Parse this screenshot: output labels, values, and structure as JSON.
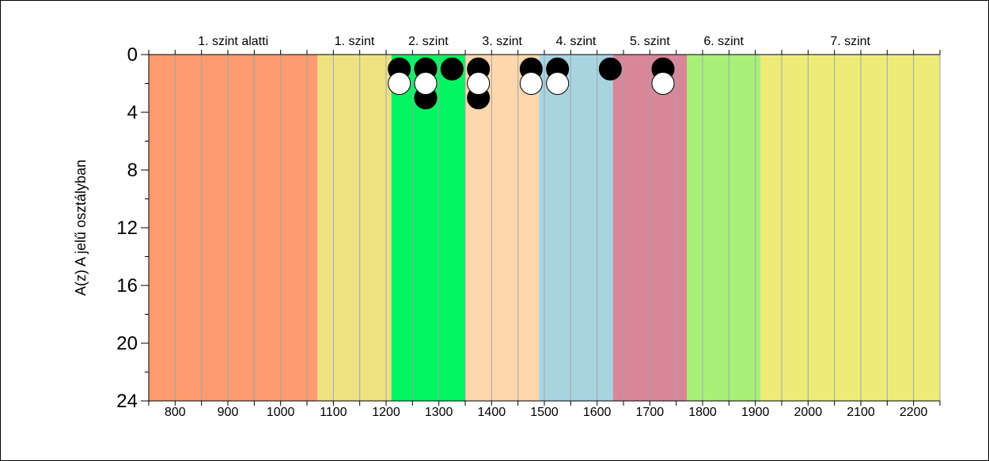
{
  "chart_data": {
    "type": "scatter",
    "title": "",
    "xlabel": "",
    "ylabel": "A(z) A jelű osztályban",
    "xlim": [
      750,
      2250
    ],
    "ylim": [
      0,
      24
    ],
    "y_inverted": true,
    "x_ticks": [
      800,
      900,
      1000,
      1100,
      1200,
      1300,
      1400,
      1500,
      1600,
      1700,
      1800,
      1900,
      2000,
      2100,
      2200
    ],
    "y_ticks": [
      0,
      4,
      8,
      12,
      16,
      20,
      24
    ],
    "grid": "vertical",
    "bands": [
      {
        "label": "1. szint alatti",
        "from": 750,
        "to": 1070,
        "color": "#FF9B6E"
      },
      {
        "label": "1. szint",
        "from": 1070,
        "to": 1210,
        "color": "#EEE283"
      },
      {
        "label": "2. szint",
        "from": 1210,
        "to": 1350,
        "color": "#00F560"
      },
      {
        "label": "3. szint",
        "from": 1350,
        "to": 1490,
        "color": "#FFD7AC"
      },
      {
        "label": "4. szint",
        "from": 1490,
        "to": 1630,
        "color": "#A8D4E0"
      },
      {
        "label": "5. szint",
        "from": 1630,
        "to": 1770,
        "color": "#D98698"
      },
      {
        "label": "6. szint",
        "from": 1770,
        "to": 1910,
        "color": "#A8F078"
      },
      {
        "label": "7. szint",
        "from": 1910,
        "to": 2250,
        "color": "#EEEC78"
      }
    ],
    "series": [
      {
        "marker": "black",
        "color": "#000000",
        "points": [
          [
            1225,
            1
          ],
          [
            1275,
            1
          ],
          [
            1275,
            3
          ],
          [
            1325,
            1
          ],
          [
            1375,
            1
          ],
          [
            1375,
            3
          ],
          [
            1475,
            1
          ],
          [
            1525,
            1
          ],
          [
            1625,
            1
          ],
          [
            1725,
            1
          ]
        ]
      },
      {
        "marker": "white",
        "color": "#FFFFFF",
        "points": [
          [
            1225,
            2
          ],
          [
            1275,
            2
          ],
          [
            1375,
            2
          ],
          [
            1475,
            2
          ],
          [
            1525,
            2
          ],
          [
            1725,
            2
          ]
        ]
      }
    ]
  }
}
